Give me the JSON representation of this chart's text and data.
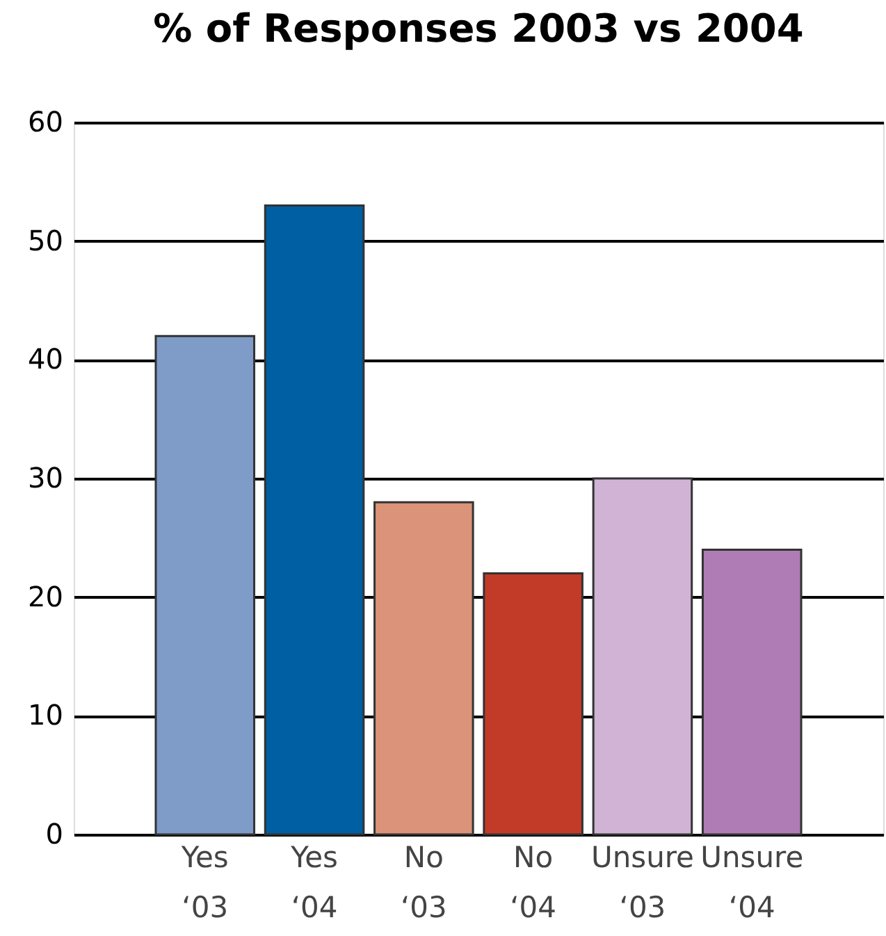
{
  "chart_data": {
    "type": "bar",
    "title": "% of Responses 2003 vs 2004",
    "categories": [
      "Yes ‘03",
      "Yes ‘04",
      "No ‘03",
      "No ‘04",
      "Unsure ‘03",
      "Unsure ‘04"
    ],
    "values": [
      42,
      53,
      28,
      22,
      30,
      24
    ],
    "colors": [
      "#7f9bc8",
      "#005ea3",
      "#db9379",
      "#c23b28",
      "#d1b3d6",
      "#b07cb5"
    ],
    "ylim": [
      0,
      60
    ],
    "yticks": [
      0,
      10,
      20,
      30,
      40,
      50,
      60
    ],
    "grid": "y"
  }
}
